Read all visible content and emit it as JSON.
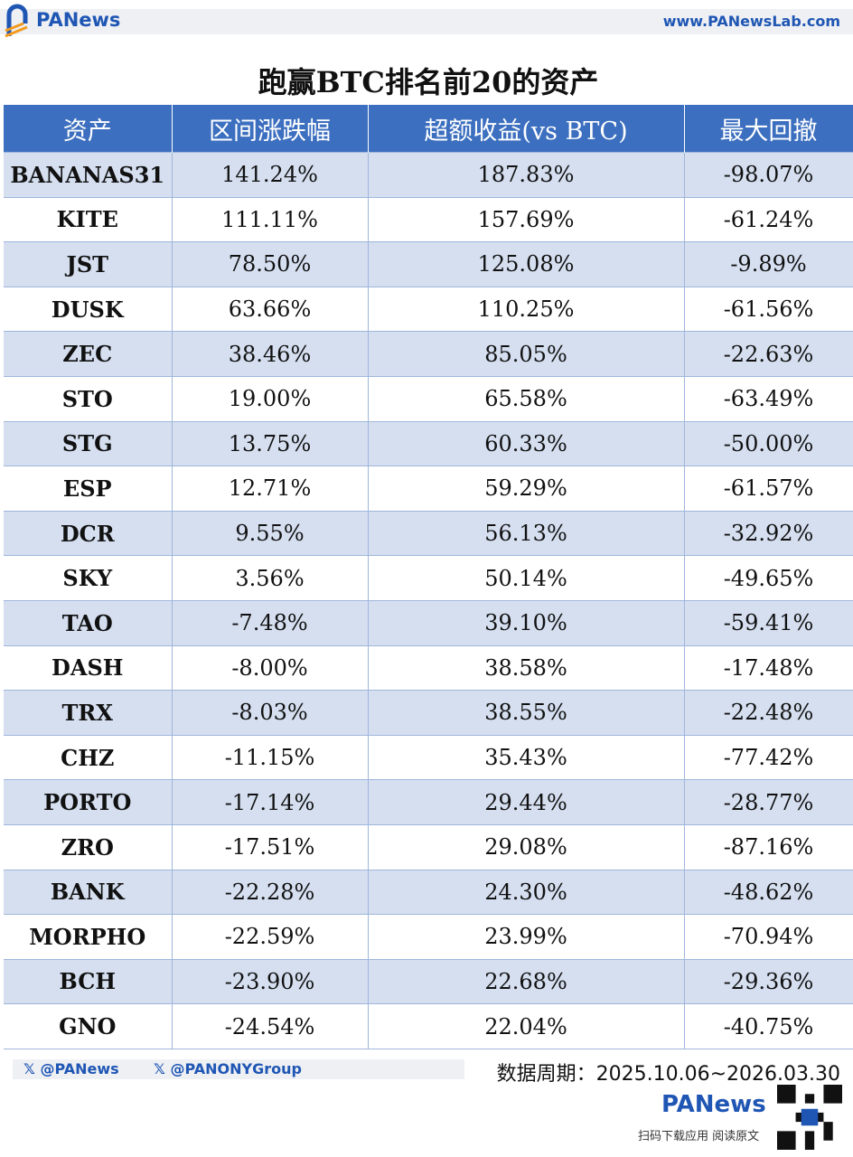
{
  "header": {
    "brand": "PANews",
    "url": "www.PANewsLab.com"
  },
  "table": {
    "title": "跑赢BTC排名前20的资产",
    "columns": [
      "资产",
      "区间涨跌幅",
      "超额收益(vs BTC)",
      "最大回撤"
    ],
    "rows": [
      [
        "BANANAS31",
        "141.24%",
        "187.83%",
        "-98.07%"
      ],
      [
        "KITE",
        "111.11%",
        "157.69%",
        "-61.24%"
      ],
      [
        "JST",
        "78.50%",
        "125.08%",
        "-9.89%"
      ],
      [
        "DUSK",
        "63.66%",
        "110.25%",
        "-61.56%"
      ],
      [
        "ZEC",
        "38.46%",
        "85.05%",
        "-22.63%"
      ],
      [
        "STO",
        "19.00%",
        "65.58%",
        "-63.49%"
      ],
      [
        "STG",
        "13.75%",
        "60.33%",
        "-50.00%"
      ],
      [
        "ESP",
        "12.71%",
        "59.29%",
        "-61.57%"
      ],
      [
        "DCR",
        "9.55%",
        "56.13%",
        "-32.92%"
      ],
      [
        "SKY",
        "3.56%",
        "50.14%",
        "-49.65%"
      ],
      [
        "TAO",
        "-7.48%",
        "39.10%",
        "-59.41%"
      ],
      [
        "DASH",
        "-8.00%",
        "38.58%",
        "-17.48%"
      ],
      [
        "TRX",
        "-8.03%",
        "38.55%",
        "-22.48%"
      ],
      [
        "CHZ",
        "-11.15%",
        "35.43%",
        "-77.42%"
      ],
      [
        "PORTO",
        "-17.14%",
        "29.44%",
        "-28.77%"
      ],
      [
        "ZRO",
        "-17.51%",
        "29.08%",
        "-87.16%"
      ],
      [
        "BANK",
        "-22.28%",
        "24.30%",
        "-48.62%"
      ],
      [
        "MORPHO",
        "-22.59%",
        "23.99%",
        "-70.94%"
      ],
      [
        "BCH",
        "-23.90%",
        "22.68%",
        "-29.36%"
      ],
      [
        "GNO",
        "-24.54%",
        "22.04%",
        "-40.75%"
      ]
    ]
  },
  "footer": {
    "handles": [
      "@PANews",
      "@PANONYGroup"
    ],
    "period": "数据周期：2025.10.06~2026.03.30",
    "brand": "PANews",
    "tagline": "扫码下载应用 阅读原文"
  }
}
